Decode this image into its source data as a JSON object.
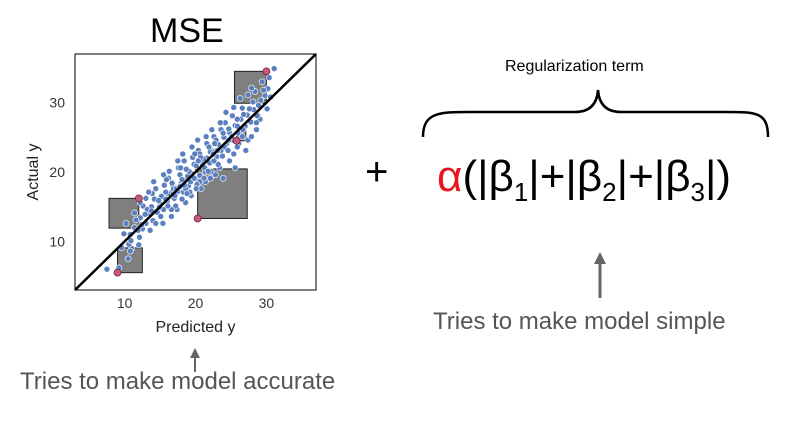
{
  "left_panel": {
    "title": "MSE",
    "caption": "Tries to make model accurate"
  },
  "operator": "+",
  "right_panel": {
    "brace_label": "Regularization term",
    "alpha": "α",
    "formula_parts": [
      "(|β",
      "1",
      "|+|β",
      "2",
      "|+|β",
      "3",
      "|)"
    ],
    "caption": "Tries to make model simple"
  },
  "colors": {
    "points": "#5b7fbf",
    "highlight": "#c45c78",
    "squares": "#7f7f7f",
    "alpha": "#e8161e",
    "arrow": "#666666"
  },
  "chart_data": {
    "type": "scatter",
    "xlabel": "Predicted y",
    "ylabel": "Actual y",
    "xlim": [
      3,
      37
    ],
    "ylim": [
      3,
      37
    ],
    "xticks": [
      10,
      20,
      30
    ],
    "yticks": [
      10,
      20,
      30
    ],
    "diagonal": true,
    "points": [
      [
        7.5,
        6
      ],
      [
        9.2,
        6.2
      ],
      [
        10.5,
        7.5
      ],
      [
        11,
        9
      ],
      [
        10.8,
        11
      ],
      [
        11.4,
        12
      ],
      [
        12,
        9.5
      ],
      [
        12.5,
        11.8
      ],
      [
        13,
        12.6
      ],
      [
        12.2,
        13.4
      ],
      [
        13.5,
        14
      ],
      [
        14,
        13
      ],
      [
        13.8,
        15
      ],
      [
        14.6,
        14.2
      ],
      [
        15,
        15.5
      ],
      [
        15.5,
        14.6
      ],
      [
        15.2,
        16.5
      ],
      [
        16,
        15.8
      ],
      [
        16.4,
        17
      ],
      [
        17,
        16.2
      ],
      [
        16.8,
        18
      ],
      [
        17.5,
        17.2
      ],
      [
        18,
        18.5
      ],
      [
        18.3,
        17.1
      ],
      [
        18.7,
        19
      ],
      [
        19,
        18
      ],
      [
        19.4,
        19.8
      ],
      [
        20,
        19
      ],
      [
        20.2,
        20.6
      ],
      [
        20.6,
        19.5
      ],
      [
        21,
        21
      ],
      [
        21.4,
        20
      ],
      [
        21.6,
        22
      ],
      [
        22,
        21.3
      ],
      [
        22.4,
        23
      ],
      [
        23,
        22.2
      ],
      [
        23.2,
        24
      ],
      [
        23.6,
        23.1
      ],
      [
        24,
        25
      ],
      [
        24.4,
        24.1
      ],
      [
        24.8,
        25.7
      ],
      [
        25.3,
        24.6
      ],
      [
        25.6,
        26.7
      ],
      [
        26,
        25.6
      ],
      [
        26.4,
        27.6
      ],
      [
        27,
        26.6
      ],
      [
        27.3,
        28.2
      ],
      [
        27.8,
        27.2
      ],
      [
        28.2,
        29
      ],
      [
        28.8,
        28.2
      ],
      [
        29.2,
        30.3
      ],
      [
        29.8,
        31
      ],
      [
        28.4,
        31.6
      ],
      [
        30.2,
        32
      ],
      [
        29.4,
        33
      ],
      [
        13,
        16.2
      ],
      [
        14.4,
        17.6
      ],
      [
        16.2,
        19.1
      ],
      [
        17.6,
        20.6
      ],
      [
        19.6,
        22.1
      ],
      [
        21.6,
        24.1
      ],
      [
        23.6,
        26.1
      ],
      [
        25.2,
        28.1
      ],
      [
        15.4,
        12.6
      ],
      [
        17.4,
        14.6
      ],
      [
        19.4,
        16.6
      ],
      [
        21.4,
        18.6
      ],
      [
        23.4,
        20.6
      ],
      [
        25.4,
        22.6
      ],
      [
        27.4,
        24.6
      ],
      [
        18.4,
        21.6
      ],
      [
        20.4,
        23.1
      ],
      [
        22.6,
        25.1
      ],
      [
        17.2,
        15.1
      ],
      [
        19.2,
        17.1
      ],
      [
        21.2,
        19.1
      ],
      [
        15.6,
        18.1
      ],
      [
        20.8,
        17.6
      ],
      [
        22.8,
        19.6
      ],
      [
        24.8,
        21.6
      ],
      [
        12.6,
        15.1
      ],
      [
        14.2,
        16.1
      ],
      [
        16.6,
        13.6
      ],
      [
        18.6,
        15.6
      ],
      [
        26.6,
        29.2
      ],
      [
        24.2,
        27.1
      ],
      [
        28.6,
        26.1
      ],
      [
        22.2,
        20.1
      ],
      [
        19.8,
        21.1
      ],
      [
        17.8,
        19.6
      ],
      [
        23.2,
        21.1
      ],
      [
        20.6,
        22.6
      ],
      [
        16.1,
        16.9
      ],
      [
        18.1,
        18.9
      ],
      [
        20.1,
        20.9
      ],
      [
        22.1,
        22.9
      ],
      [
        24.1,
        23.6
      ],
      [
        26.1,
        24.1
      ],
      [
        11.6,
        13.1
      ],
      [
        10.6,
        9.6
      ],
      [
        14.8,
        15.9
      ],
      [
        16.9,
        17.6
      ],
      [
        18.9,
        19.4
      ],
      [
        20.9,
        21.6
      ],
      [
        22.9,
        24.6
      ],
      [
        25.9,
        27.6
      ],
      [
        27.6,
        29.1
      ],
      [
        13.2,
        14.6
      ],
      [
        15.8,
        17.1
      ],
      [
        19.1,
        20.1
      ],
      [
        21.1,
        21.9
      ],
      [
        23.1,
        23.1
      ],
      [
        25.1,
        25.1
      ],
      [
        10.2,
        12.6
      ],
      [
        12.1,
        10.6
      ],
      [
        9.6,
        9.1
      ],
      [
        15.1,
        13.6
      ],
      [
        17.1,
        16.6
      ],
      [
        19.3,
        18.6
      ],
      [
        21.3,
        20.6
      ],
      [
        14.1,
        18.6
      ],
      [
        16.3,
        20.1
      ],
      [
        18.2,
        22.6
      ],
      [
        20.3,
        24.6
      ],
      [
        22.3,
        26.1
      ],
      [
        24.3,
        28.6
      ],
      [
        26.3,
        30.6
      ],
      [
        23.9,
        19.1
      ],
      [
        25.6,
        20.6
      ],
      [
        27.1,
        23.1
      ],
      [
        27.9,
        25.1
      ],
      [
        29.1,
        27.6
      ],
      [
        30.1,
        29.1
      ],
      [
        13.6,
        11.6
      ],
      [
        16.6,
        14.6
      ],
      [
        18.6,
        17.6
      ],
      [
        20.6,
        18.6
      ],
      [
        22.6,
        21.6
      ],
      [
        24.6,
        23.1
      ],
      [
        26.6,
        25.1
      ],
      [
        28.6,
        27.1
      ],
      [
        15.9,
        18.9
      ],
      [
        17.9,
        20.6
      ],
      [
        19.9,
        22.6
      ],
      [
        21.9,
        23.6
      ],
      [
        23.9,
        25.6
      ],
      [
        25.9,
        26.6
      ],
      [
        14.9,
        14.9
      ],
      [
        13.9,
        16.9
      ],
      [
        12.9,
        13.9
      ],
      [
        20.2,
        18.2
      ],
      [
        18.8,
        16.9
      ],
      [
        17.3,
        17.6
      ],
      [
        24.7,
        26.2
      ],
      [
        26.8,
        28.3
      ],
      [
        28.1,
        30.1
      ],
      [
        29.6,
        31.8
      ],
      [
        30.6,
        30.8
      ],
      [
        27.4,
        31.1
      ],
      [
        25.4,
        29.3
      ],
      [
        11.9,
        11.6
      ],
      [
        10.9,
        10.1
      ],
      [
        12.4,
        12.4
      ],
      [
        14.4,
        12.6
      ],
      [
        16.1,
        15.1
      ],
      [
        18.1,
        16.1
      ],
      [
        20.1,
        17.6
      ],
      [
        22.1,
        19.1
      ],
      [
        19.5,
        23.6
      ],
      [
        17.5,
        21.6
      ],
      [
        15.5,
        19.6
      ],
      [
        21.5,
        25.1
      ],
      [
        23.5,
        27.1
      ],
      [
        28.9,
        29.6
      ],
      [
        30.4,
        33.6
      ],
      [
        29.9,
        34.6
      ],
      [
        27.9,
        32.1
      ],
      [
        13.4,
        17.1
      ],
      [
        12.2,
        15.6
      ],
      [
        11.4,
        14.1
      ],
      [
        16.7,
        18.4
      ],
      [
        18.7,
        20.4
      ],
      [
        20.7,
        22.1
      ],
      [
        22.7,
        24.1
      ],
      [
        24.7,
        24.6
      ],
      [
        26.7,
        26.1
      ],
      [
        28.7,
        28.1
      ],
      [
        9.9,
        11.1
      ],
      [
        10.8,
        8.6
      ],
      [
        31.1,
        34.9
      ],
      [
        25.9,
        23.6
      ],
      [
        23.8,
        22.3
      ],
      [
        21.8,
        20.1
      ],
      [
        19.8,
        19.1
      ],
      [
        17.8,
        17.9
      ],
      [
        15.8,
        16.1
      ],
      [
        13.8,
        14.4
      ],
      [
        20.4,
        21.6
      ],
      [
        22.5,
        22.6
      ],
      [
        18.4,
        18.1
      ]
    ],
    "highlight_points": [
      [
        9,
        5.5
      ],
      [
        12,
        16.2
      ],
      [
        20.3,
        13.3
      ],
      [
        25.8,
        24.5
      ],
      [
        30,
        34.5
      ]
    ],
    "error_squares": [
      {
        "pred": 9,
        "actual": 5.5
      },
      {
        "pred": 12,
        "actual": 16.2
      },
      {
        "pred": 20.3,
        "actual": 13.3
      },
      {
        "pred": 25.8,
        "actual": 24.5
      },
      {
        "pred": 30,
        "actual": 34.5
      }
    ]
  }
}
